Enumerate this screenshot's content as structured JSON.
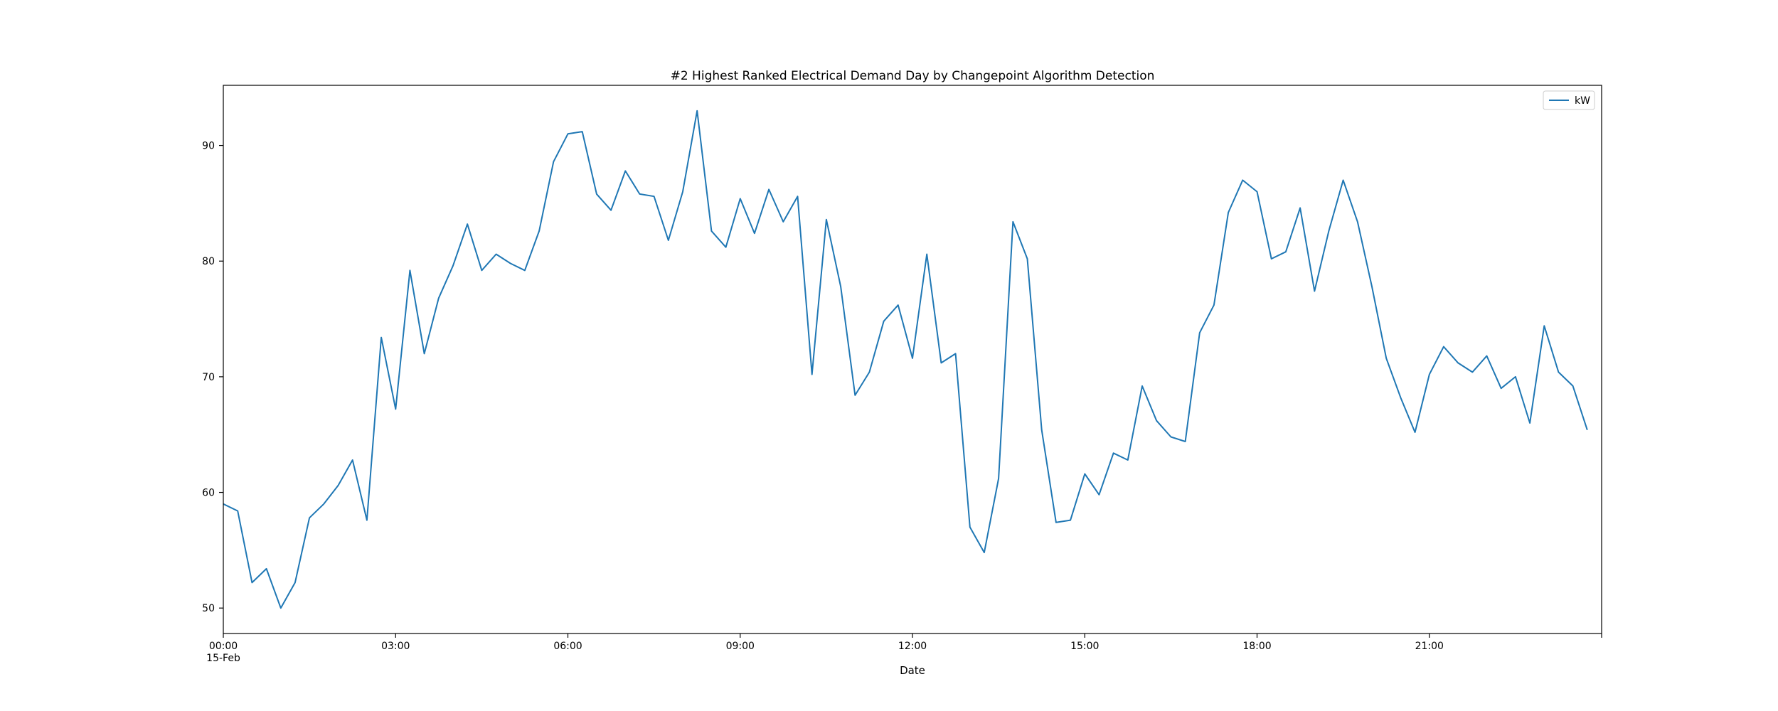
{
  "chart_data": {
    "type": "line",
    "title": "#2 Highest Ranked Electrical Demand Day by Changepoint Algorithm Detection",
    "xlabel": "Date",
    "ylabel": "",
    "xlim": [
      "00:00",
      "24:00"
    ],
    "ylim": [
      47.8,
      95.2
    ],
    "grid": false,
    "legend": {
      "position": "top-right",
      "entries": [
        "kW"
      ]
    },
    "x_ticks": [
      {
        "x": "00:00",
        "label": "00:00",
        "sublabel": "15-Feb"
      },
      {
        "x": "03:00",
        "label": "03:00"
      },
      {
        "x": "06:00",
        "label": "06:00"
      },
      {
        "x": "09:00",
        "label": "09:00"
      },
      {
        "x": "12:00",
        "label": "12:00"
      },
      {
        "x": "15:00",
        "label": "15:00"
      },
      {
        "x": "18:00",
        "label": "18:00"
      },
      {
        "x": "21:00",
        "label": "21:00"
      },
      {
        "x": "24:00",
        "label": ""
      }
    ],
    "y_ticks": [
      50,
      60,
      70,
      80,
      90
    ],
    "series": [
      {
        "name": "kW",
        "color": "#1f77b4",
        "x": [
          "00:00",
          "00:15",
          "00:30",
          "00:45",
          "01:00",
          "01:15",
          "01:30",
          "01:45",
          "02:00",
          "02:15",
          "02:30",
          "02:45",
          "03:00",
          "03:15",
          "03:30",
          "03:45",
          "04:00",
          "04:15",
          "04:30",
          "04:45",
          "05:00",
          "05:15",
          "05:30",
          "05:45",
          "06:00",
          "06:15",
          "06:30",
          "06:45",
          "07:00",
          "07:15",
          "07:30",
          "07:45",
          "08:00",
          "08:15",
          "08:30",
          "08:45",
          "09:00",
          "09:15",
          "09:30",
          "09:45",
          "10:00",
          "10:15",
          "10:30",
          "10:45",
          "11:00",
          "11:15",
          "11:30",
          "11:45",
          "12:00",
          "12:15",
          "12:30",
          "12:45",
          "13:00",
          "13:15",
          "13:30",
          "13:45",
          "14:00",
          "14:15",
          "14:30",
          "14:45",
          "15:00",
          "15:15",
          "15:30",
          "15:45",
          "16:00",
          "16:15",
          "16:30",
          "16:45",
          "17:00",
          "17:15",
          "17:30",
          "17:45",
          "18:00",
          "18:15",
          "18:30",
          "18:45",
          "19:00",
          "19:15",
          "19:30",
          "19:45",
          "20:00",
          "20:15",
          "20:30",
          "20:45",
          "21:00",
          "21:15",
          "21:30",
          "21:45",
          "22:00",
          "22:15",
          "22:30",
          "22:45",
          "23:00",
          "23:15",
          "23:30",
          "23:45"
        ],
        "values": [
          59.0,
          58.4,
          52.2,
          53.4,
          50.0,
          52.2,
          57.8,
          59.0,
          60.6,
          62.8,
          57.6,
          73.4,
          67.2,
          79.2,
          72.0,
          76.8,
          79.6,
          83.2,
          79.2,
          80.6,
          79.8,
          79.2,
          82.6,
          88.6,
          91.0,
          91.2,
          85.8,
          84.4,
          87.8,
          85.8,
          85.6,
          81.8,
          86.0,
          93.0,
          82.6,
          81.2,
          85.4,
          82.4,
          86.2,
          83.4,
          85.6,
          70.2,
          83.6,
          77.8,
          68.4,
          70.4,
          74.8,
          76.2,
          71.6,
          80.6,
          71.2,
          72.0,
          57.0,
          54.8,
          61.2,
          83.4,
          80.2,
          65.4,
          57.4,
          57.6,
          61.6,
          59.8,
          63.4,
          62.8,
          69.2,
          66.2,
          64.8,
          64.4,
          73.8,
          76.2,
          84.2,
          87.0,
          86.0,
          80.2,
          80.8,
          84.6,
          77.4,
          82.6,
          87.0,
          83.4,
          77.8,
          71.6,
          68.2,
          65.2,
          70.2,
          72.6,
          71.2,
          70.4,
          71.8,
          69.0,
          70.0,
          66.0,
          74.4,
          70.4,
          69.2,
          65.4
        ]
      }
    ]
  }
}
